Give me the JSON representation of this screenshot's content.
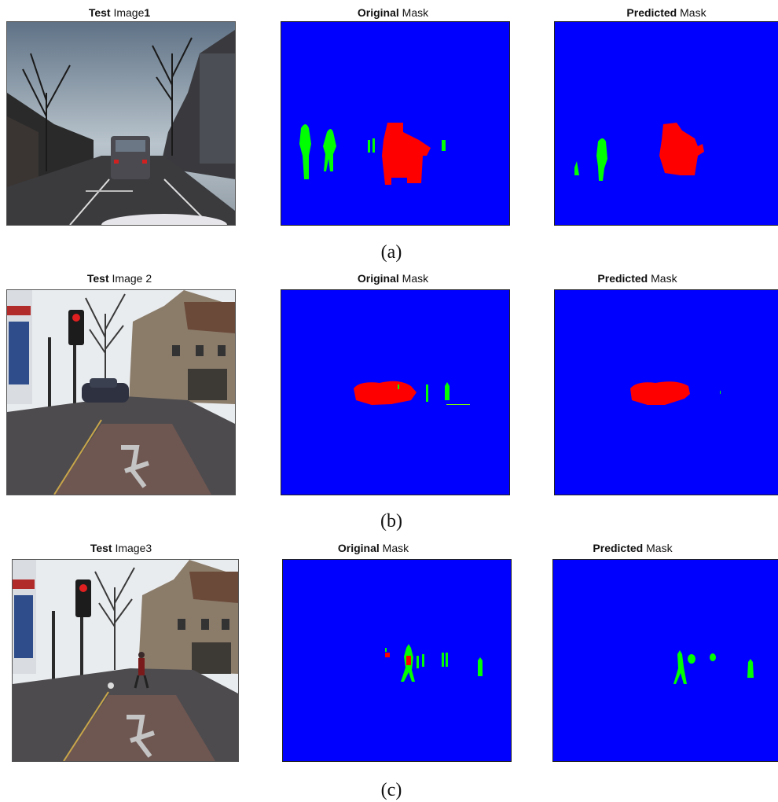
{
  "rows": [
    {
      "caption": "(a)",
      "titles": [
        {
          "bold": "Test",
          "rest": "Image",
          "suffix": "1"
        },
        {
          "bold": "Original",
          "rest": "Mask",
          "suffix": ""
        },
        {
          "bold": "Predicted",
          "rest": "Mask",
          "suffix": ""
        }
      ]
    },
    {
      "caption": "(b)",
      "titles": [
        {
          "bold": "Test",
          "rest": "Image",
          "suffix": "2"
        },
        {
          "bold": "Original",
          "rest": "Mask",
          "suffix": ""
        },
        {
          "bold": "Predicted",
          "rest": "Mask",
          "suffix": ""
        }
      ]
    },
    {
      "caption": "(c)",
      "titles": [
        {
          "bold": "Test",
          "rest": "Image",
          "suffix": "3"
        },
        {
          "bold": "Original",
          "rest": "Mask",
          "suffix": ""
        },
        {
          "bold": "Predicted",
          "rest": "Mask",
          "suffix": ""
        }
      ]
    }
  ],
  "colors": {
    "background_class": "#0000ff",
    "vehicle_class": "#ff0000",
    "pedestrian_class": "#00ff00"
  }
}
